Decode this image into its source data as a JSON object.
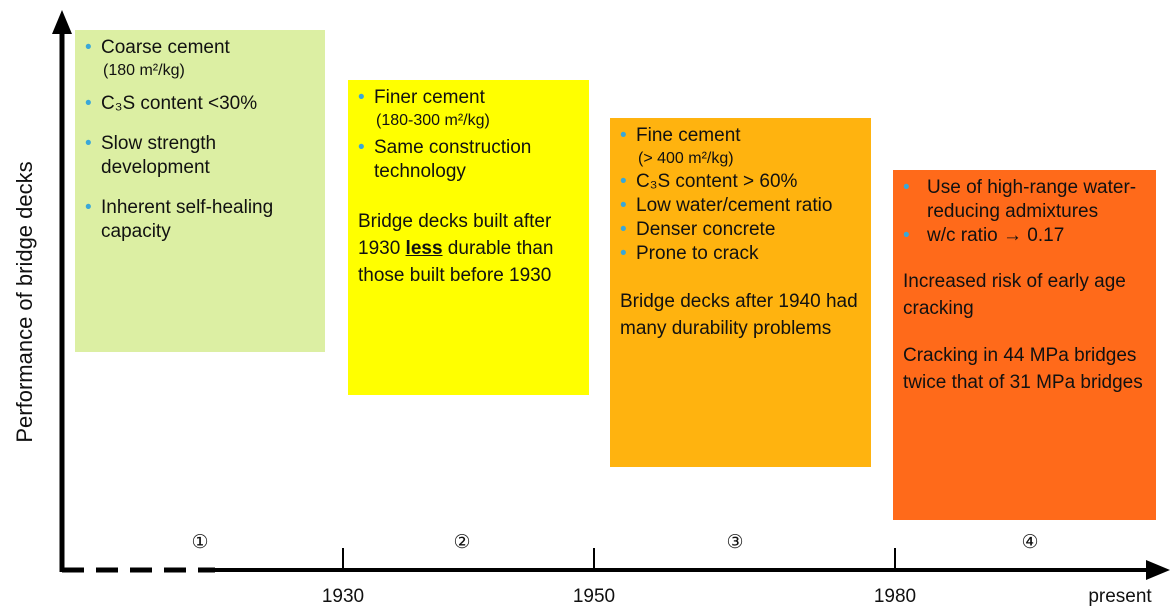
{
  "y_axis_label": "Performance of bridge decks",
  "x_axis": {
    "labels": [
      "1930",
      "1950",
      "1980",
      "present"
    ],
    "periods": [
      "①",
      "②",
      "③",
      "④"
    ]
  },
  "boxes": [
    {
      "bullets": [
        {
          "text": "Coarse cement",
          "note": "(180 m²/kg)"
        },
        {
          "text": "C₃S content <30%"
        },
        {
          "text": "Slow strength development"
        },
        {
          "text": "Inherent self-healing capacity"
        }
      ],
      "paragraphs": []
    },
    {
      "bullets": [
        {
          "text": "Finer cement",
          "note": "(180-300 m²/kg)"
        },
        {
          "text": "Same construction technology"
        }
      ],
      "paragraphs": [
        {
          "parts": [
            {
              "text": "Bridge decks built after 1930 "
            },
            {
              "text": "less",
              "strong": true
            },
            {
              "text": " durable than those built before 1930"
            }
          ]
        }
      ]
    },
    {
      "bullets": [
        {
          "text": "Fine cement",
          "note": "(> 400 m²/kg)"
        },
        {
          "text": "C₃S content > 60%"
        },
        {
          "text": "Low water/cement ratio"
        },
        {
          "text": "Denser concrete"
        },
        {
          "text": "Prone to crack"
        }
      ],
      "paragraphs": [
        {
          "parts": [
            {
              "text": "Bridge decks after 1940 had many durability problems"
            }
          ]
        }
      ]
    },
    {
      "bullets": [
        {
          "text": "Use of high-range water-reducing admixtures"
        },
        {
          "text": "w/c ratio → 0.17"
        }
      ],
      "paragraphs": [
        {
          "parts": [
            {
              "text": "Increased risk of early age cracking"
            }
          ]
        },
        {
          "parts": [
            {
              "text": "Cracking in 44 MPa bridges twice that of 31 MPa bridges"
            }
          ]
        }
      ]
    }
  ]
}
